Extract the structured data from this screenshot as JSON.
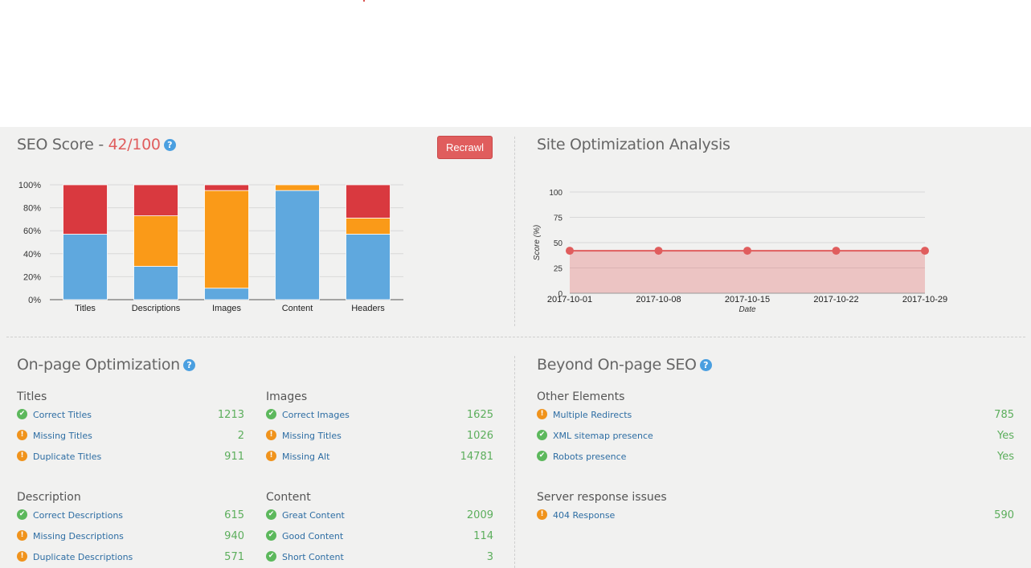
{
  "seo_score": {
    "title": "SEO Score - ",
    "score": "42/100",
    "help": "?",
    "recrawl_label": "Recrawl"
  },
  "site_optimization": {
    "title": "Site Optimization Analysis"
  },
  "onpage": {
    "title": "On-page Optimization",
    "help": "?",
    "groups": [
      {
        "title": "Titles",
        "rows": [
          {
            "status": "ok",
            "label": "Correct Titles",
            "value": "1213"
          },
          {
            "status": "warn",
            "label": "Missing Titles",
            "value": "2"
          },
          {
            "status": "warn",
            "label": "Duplicate Titles",
            "value": "911"
          }
        ]
      },
      {
        "title": "Images",
        "rows": [
          {
            "status": "ok",
            "label": "Correct Images",
            "value": "1625"
          },
          {
            "status": "warn",
            "label": "Missing Titles",
            "value": "1026"
          },
          {
            "status": "warn",
            "label": "Missing Alt",
            "value": "14781"
          }
        ]
      },
      {
        "title": "Description",
        "rows": [
          {
            "status": "ok",
            "label": "Correct Descriptions",
            "value": "615"
          },
          {
            "status": "warn",
            "label": "Missing Descriptions",
            "value": "940"
          },
          {
            "status": "warn",
            "label": "Duplicate Descriptions",
            "value": "571"
          }
        ]
      },
      {
        "title": "Content",
        "rows": [
          {
            "status": "ok",
            "label": "Great Content",
            "value": "2009"
          },
          {
            "status": "ok",
            "label": "Good Content",
            "value": "114"
          },
          {
            "status": "ok",
            "label": "Short Content",
            "value": "3"
          }
        ]
      }
    ]
  },
  "beyond": {
    "title": "Beyond On-page SEO",
    "help": "?",
    "groups": [
      {
        "title": "Other Elements",
        "rows": [
          {
            "status": "warn",
            "label": "Multiple Redirects",
            "value": "785"
          },
          {
            "status": "ok",
            "label": "XML sitemap presence",
            "value": "Yes"
          },
          {
            "status": "ok",
            "label": "Robots presence",
            "value": "Yes"
          }
        ]
      },
      {
        "title": "Server response issues",
        "rows": [
          {
            "status": "warn",
            "label": "404 Response",
            "value": "590"
          }
        ]
      }
    ]
  },
  "icons": {
    "ok": "check-circle-icon",
    "warn": "exclamation-circle-icon"
  },
  "colors": {
    "blue": "#5fa8de",
    "orange": "#fa9a18",
    "red": "#d9393f",
    "accent": "#e05d5d",
    "green": "#5cae5c",
    "link": "#2d6da3"
  },
  "chart_data": [
    {
      "type": "bar",
      "stacked": true,
      "categories": [
        "Titles",
        "Descriptions",
        "Images",
        "Content",
        "Headers"
      ],
      "ylim": [
        0,
        100
      ],
      "yticks": [
        "0%",
        "20%",
        "40%",
        "60%",
        "80%",
        "100%"
      ],
      "series": [
        {
          "values": [
            57,
            29,
            10,
            95,
            57
          ],
          "color": "#5fa8de"
        },
        {
          "values": [
            0,
            44,
            85,
            5,
            14
          ],
          "color": "#fa9a18"
        },
        {
          "values": [
            43,
            27,
            5,
            0,
            29
          ],
          "color": "#d9393f"
        }
      ],
      "grid": true
    },
    {
      "type": "area",
      "x": [
        "2017-10-01",
        "2017-10-08",
        "2017-10-15",
        "2017-10-22",
        "2017-10-29"
      ],
      "y": [
        42,
        42,
        42,
        42,
        42
      ],
      "ylim": [
        0,
        100
      ],
      "yticks": [
        "0",
        "25",
        "50",
        "75",
        "100"
      ],
      "xlabel": "Date",
      "ylabel": "Score (%)",
      "color": "#e05d5d",
      "grid": true
    }
  ]
}
